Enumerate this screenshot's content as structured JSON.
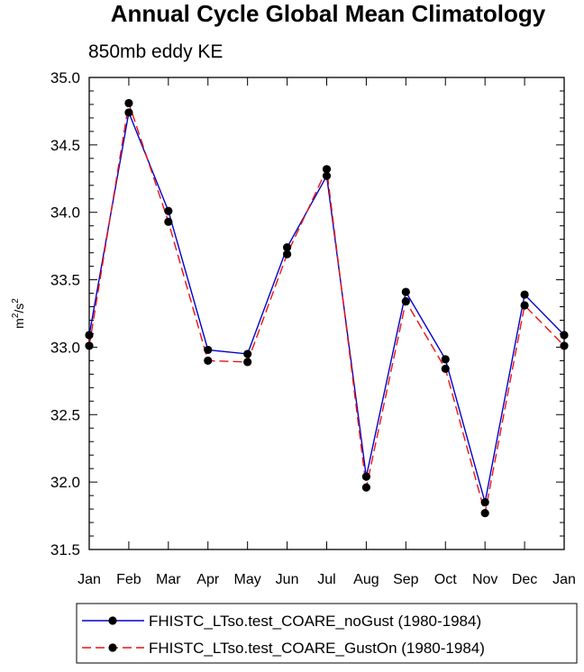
{
  "chart_data": {
    "type": "line",
    "title": "Annual Cycle Global Mean Climatology",
    "subtitle": "850mb eddy KE",
    "ylabel_base": "m",
    "ylabel_exp1": "2",
    "ylabel_mid": "/s",
    "ylabel_exp2": "2",
    "xlabel": "",
    "categories": [
      "Jan",
      "Feb",
      "Mar",
      "Apr",
      "May",
      "Jun",
      "Jul",
      "Aug",
      "Sep",
      "Oct",
      "Nov",
      "Dec",
      "Jan"
    ],
    "ylim": [
      31.5,
      35.0
    ],
    "yticks": [
      "31.5",
      "32.0",
      "32.5",
      "33.0",
      "33.5",
      "34.0",
      "34.5",
      "35.0"
    ],
    "yticks_values": [
      31.5,
      32.0,
      32.5,
      33.0,
      33.5,
      34.0,
      34.5,
      35.0
    ],
    "legend_position": "bottom",
    "series": [
      {
        "name": "FHISTC_LTso.test_COARE_noGust (1980-1984)",
        "color": "#0000cc",
        "style": "solid",
        "values": [
          33.09,
          34.74,
          34.01,
          32.98,
          32.95,
          33.74,
          34.27,
          32.04,
          33.41,
          32.91,
          31.85,
          33.39,
          33.09
        ]
      },
      {
        "name": "FHISTC_LTso.test_COARE_GustOn (1980-1984)",
        "color": "#ee1111",
        "style": "dashed",
        "values": [
          33.01,
          34.81,
          33.93,
          32.9,
          32.89,
          33.69,
          34.32,
          31.96,
          33.34,
          32.84,
          31.77,
          33.31,
          33.01
        ]
      }
    ]
  }
}
